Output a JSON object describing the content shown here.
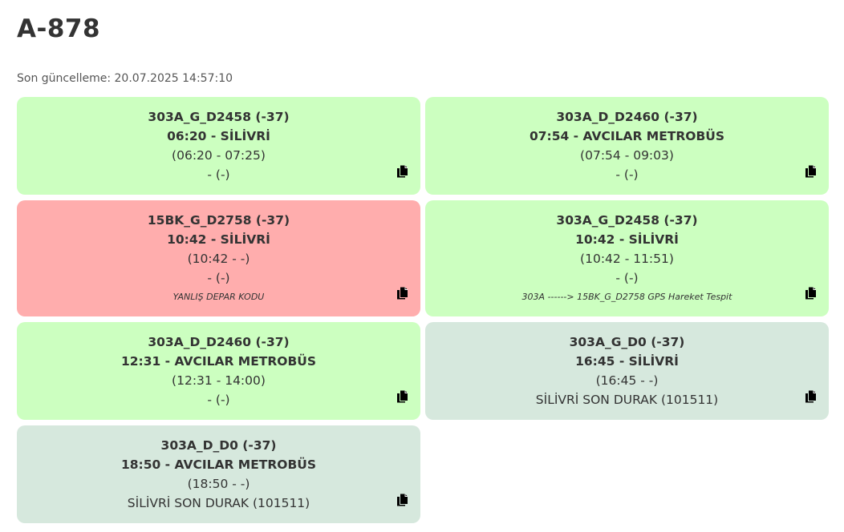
{
  "header": {
    "title": "A-878",
    "updated_text": "Son güncelleme: 20.07.2025 14:57:10"
  },
  "colors": {
    "ok": "#ccffc0",
    "error": "#ffadad",
    "pending": "#d6e8dd"
  },
  "cards": [
    {
      "code": "303A_G_D2458 (-37)",
      "departure": "06:20 - SİLİVRİ",
      "range": "(06:20 - 07:25)",
      "status": "- (-)",
      "note": "",
      "state": "ok",
      "icon": "copy-icon"
    },
    {
      "code": "303A_D_D2460 (-37)",
      "departure": "07:54 - AVCILAR METROBÜS",
      "range": "(07:54 - 09:03)",
      "status": "- (-)",
      "note": "",
      "state": "ok",
      "icon": "copy-icon"
    },
    {
      "code": "15BK_G_D2758 (-37)",
      "departure": "10:42 - SİLİVRİ",
      "range": "(10:42 - -)",
      "status": "- (-)",
      "note": "YANLIŞ DEPAR KODU",
      "state": "error",
      "icon": "copy-icon"
    },
    {
      "code": "303A_G_D2458 (-37)",
      "departure": "10:42 - SİLİVRİ",
      "range": "(10:42 - 11:51)",
      "status": "- (-)",
      "note": "303A ------> 15BK_G_D2758 GPS Hareket Tespit",
      "state": "ok",
      "icon": "copy-icon"
    },
    {
      "code": "303A_D_D2460 (-37)",
      "departure": "12:31 - AVCILAR METROBÜS",
      "range": "(12:31 - 14:00)",
      "status": "- (-)",
      "note": "",
      "state": "ok",
      "icon": "copy-icon"
    },
    {
      "code": "303A_G_D0 (-37)",
      "departure": "16:45 - SİLİVRİ",
      "range": "(16:45 - -)",
      "status": "SİLİVRİ SON DURAK (101511)",
      "note": "",
      "state": "pending",
      "icon": "copy-icon"
    },
    {
      "code": "303A_D_D0 (-37)",
      "departure": "18:50 - AVCILAR METROBÜS",
      "range": "(18:50 - -)",
      "status": "SİLİVRİ SON DURAK (101511)",
      "note": "",
      "state": "pending",
      "icon": "copy-icon"
    }
  ]
}
